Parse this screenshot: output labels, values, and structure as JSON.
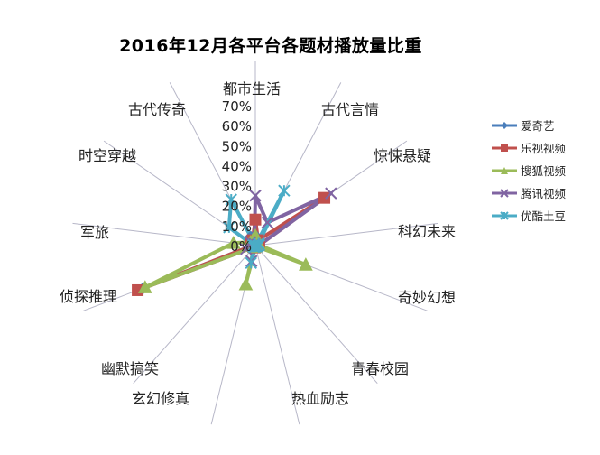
{
  "chart_data": {
    "type": "radar",
    "title": "2016年12月各平台各题材播放量比重",
    "categories": [
      "都市生活",
      "古代言情",
      "惊悚悬疑",
      "科幻未来",
      "奇妙幻想",
      "青春校园",
      "热血励志",
      "玄幻修真",
      "幽默搞笑",
      "侦探推理",
      "军旅",
      "时空穿越",
      "古代传奇"
    ],
    "radial_ticks": [
      "0%",
      "10%",
      "20%",
      "30%",
      "40%",
      "50%",
      "60%",
      "70%"
    ],
    "rmax": 70,
    "series": [
      {
        "name": "爱奇艺",
        "color": "#4a7ebb",
        "marker": "diamond",
        "values": [
          5,
          3,
          2,
          2,
          1,
          0.5,
          0.5,
          1,
          1,
          60,
          1,
          2,
          5
        ]
      },
      {
        "name": "乐视视频",
        "color": "#c0504d",
        "marker": "square",
        "values": [
          13,
          3,
          42,
          2,
          1,
          0.5,
          0.5,
          1,
          1,
          63,
          1,
          3,
          3
        ]
      },
      {
        "name": "搜狐视频",
        "color": "#9bbb59",
        "marker": "triangle",
        "values": [
          5,
          2,
          2,
          2,
          27,
          0.5,
          0.5,
          20,
          1,
          59,
          11,
          3,
          3
        ]
      },
      {
        "name": "腾讯视频",
        "color": "#8064a2",
        "marker": "x",
        "values": [
          25,
          13,
          46,
          2,
          1,
          0.5,
          0.5,
          8,
          1,
          5,
          1,
          3,
          1
        ]
      },
      {
        "name": "优酷土豆",
        "color": "#4bacc6",
        "marker": "star",
        "values": [
          0,
          31,
          2,
          2,
          1,
          0.5,
          0.5,
          9,
          1,
          1,
          1,
          16,
          26
        ]
      }
    ]
  }
}
